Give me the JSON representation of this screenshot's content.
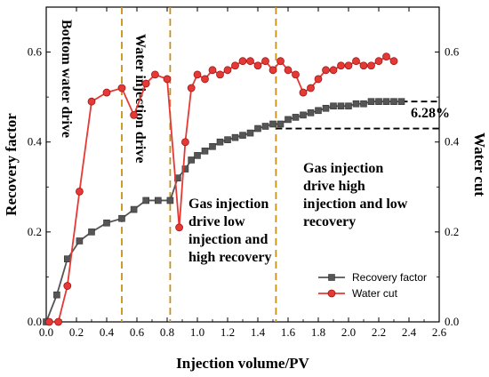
{
  "chart_data": {
    "type": "line",
    "xlabel": "Injection volume/PV",
    "ylabel_left": "Recovery factor",
    "ylabel_right": "Water cut",
    "xlim": [
      0.0,
      2.6
    ],
    "ylim": [
      0.0,
      0.7
    ],
    "x_ticks": [
      "0.0",
      "0.2",
      "0.4",
      "0.6",
      "0.8",
      "1.0",
      "1.2",
      "1.4",
      "1.6",
      "1.8",
      "2.0",
      "2.2",
      "2.4",
      "2.6"
    ],
    "y_ticks_left": [
      "0.0",
      "0.2",
      "0.4",
      "0.6"
    ],
    "y_ticks_right": [
      "0.0",
      "0.2",
      "0.4",
      "0.6"
    ],
    "grid": false,
    "legend_position": "bottom-right",
    "series": [
      {
        "name": "Recovery factor",
        "color": "#555555",
        "marker": "square",
        "x": [
          0.0,
          0.07,
          0.14,
          0.22,
          0.3,
          0.4,
          0.5,
          0.58,
          0.66,
          0.74,
          0.82,
          0.87,
          0.92,
          0.96,
          1.0,
          1.05,
          1.1,
          1.15,
          1.2,
          1.25,
          1.3,
          1.35,
          1.4,
          1.45,
          1.5,
          1.55,
          1.6,
          1.65,
          1.7,
          1.75,
          1.8,
          1.85,
          1.9,
          1.95,
          2.0,
          2.05,
          2.1,
          2.15,
          2.2,
          2.25,
          2.3,
          2.35
        ],
        "y": [
          0.0,
          0.06,
          0.14,
          0.18,
          0.2,
          0.22,
          0.23,
          0.25,
          0.27,
          0.27,
          0.27,
          0.32,
          0.34,
          0.36,
          0.37,
          0.38,
          0.39,
          0.4,
          0.405,
          0.41,
          0.415,
          0.42,
          0.43,
          0.435,
          0.44,
          0.44,
          0.45,
          0.455,
          0.46,
          0.465,
          0.47,
          0.475,
          0.48,
          0.48,
          0.48,
          0.485,
          0.485,
          0.49,
          0.49,
          0.49,
          0.49,
          0.49
        ]
      },
      {
        "name": "Water cut",
        "color": "#e53935",
        "marker": "circle",
        "x": [
          0.02,
          0.08,
          0.14,
          0.22,
          0.3,
          0.4,
          0.5,
          0.58,
          0.66,
          0.72,
          0.8,
          0.88,
          0.92,
          0.96,
          1.0,
          1.05,
          1.1,
          1.15,
          1.2,
          1.25,
          1.3,
          1.35,
          1.4,
          1.45,
          1.5,
          1.55,
          1.6,
          1.65,
          1.7,
          1.75,
          1.8,
          1.85,
          1.9,
          1.95,
          2.0,
          2.05,
          2.1,
          2.15,
          2.2,
          2.25,
          2.3
        ],
        "y": [
          0.0,
          0.0,
          0.08,
          0.29,
          0.49,
          0.51,
          0.52,
          0.46,
          0.53,
          0.55,
          0.54,
          0.21,
          0.4,
          0.52,
          0.55,
          0.54,
          0.56,
          0.55,
          0.56,
          0.57,
          0.58,
          0.58,
          0.57,
          0.58,
          0.56,
          0.58,
          0.56,
          0.55,
          0.51,
          0.52,
          0.54,
          0.56,
          0.56,
          0.57,
          0.57,
          0.58,
          0.57,
          0.57,
          0.58,
          0.59,
          0.58
        ]
      }
    ],
    "stage_boundaries_x": [
      0.5,
      0.82,
      1.52
    ],
    "stage_labels": [
      [
        "Bottom water drive"
      ],
      [
        "Water injection drive"
      ],
      [
        "Gas injection",
        "drive low",
        "injection and",
        "high recovery"
      ],
      [
        "Gas injection",
        "drive high",
        "injection and low",
        "recovery"
      ]
    ],
    "annotation": {
      "text": "6.28%",
      "upper_y": 0.49,
      "lower_y": 0.43,
      "x_start": 1.52,
      "x_end": 2.6
    }
  }
}
